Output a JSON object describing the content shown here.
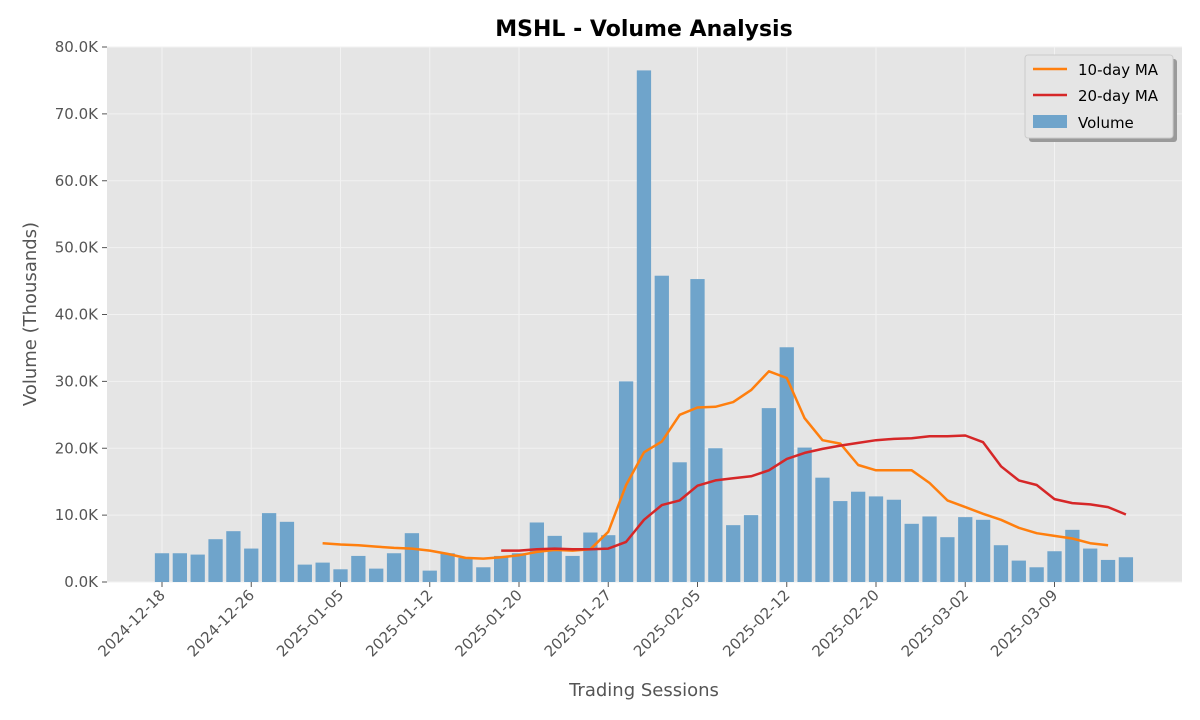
{
  "chart_data": {
    "type": "bar",
    "title": "MSHL - Volume Analysis",
    "xlabel": "Trading Sessions",
    "ylabel": "Volume (Thousands)",
    "ylim": [
      0,
      80000
    ],
    "y_tick_values": [
      0,
      10000,
      20000,
      30000,
      40000,
      50000,
      60000,
      70000,
      80000
    ],
    "y_tick_labels": [
      "0.0K",
      "10.0K",
      "20.0K",
      "30.0K",
      "40.0K",
      "50.0K",
      "60.0K",
      "70.0K",
      "80.0K"
    ],
    "x_tick_labels": [
      "2024-12-18",
      "2024-12-26",
      "2025-01-05",
      "2025-01-12",
      "2025-01-20",
      "2025-01-27",
      "2025-02-05",
      "2025-02-12",
      "2025-02-20",
      "2025-03-02",
      "2025-03-09"
    ],
    "x_tick_positions": [
      0,
      5,
      10,
      15,
      20,
      25,
      30,
      35,
      40,
      45,
      50
    ],
    "grid": true,
    "legend_position": "top-right",
    "colors": {
      "volume": "#6fa4cb",
      "ma10": "#ff7f0e",
      "ma20": "#d62728",
      "plot_bg": "#e5e5e5",
      "grid": "#f2f2f2"
    },
    "series": [
      {
        "name": "Volume",
        "type": "bar",
        "values": [
          4300,
          4300,
          4100,
          6400,
          7600,
          5000,
          10300,
          9000,
          2600,
          2900,
          1900,
          3900,
          2000,
          4300,
          7300,
          1700,
          4300,
          3600,
          2200,
          3900,
          4300,
          8900,
          6900,
          3900,
          7400,
          7000,
          30000,
          76500,
          45800,
          17900,
          45300,
          20000,
          8500,
          10000,
          26000,
          35100,
          20100,
          15600,
          12100,
          13500,
          12800,
          12300,
          8700,
          9800,
          6700,
          9700,
          9300,
          5500,
          3200,
          2200,
          4600,
          7800,
          5000,
          3300,
          3700
        ]
      },
      {
        "name": "10-day MA",
        "type": "line",
        "start_index": 9,
        "values": [
          5800,
          5600,
          5500,
          5300,
          5100,
          5000,
          4700,
          4200,
          3600,
          3500,
          3700,
          4000,
          4500,
          4800,
          4700,
          4900,
          7500,
          14500,
          19400,
          21000,
          25000,
          26100,
          26200,
          26900,
          28700,
          31500,
          30500,
          24500,
          21200,
          20700,
          17500,
          16700,
          16700,
          16700,
          14800,
          12200,
          11200,
          10200,
          9300,
          8100,
          7300,
          6900,
          6500,
          5800,
          5500
        ]
      },
      {
        "name": "20-day MA",
        "type": "line",
        "start_index": 19,
        "values": [
          4700,
          4700,
          4900,
          5000,
          4900,
          4900,
          5000,
          6000,
          9300,
          11500,
          12200,
          14400,
          15200,
          15500,
          15800,
          16700,
          18400,
          19300,
          19900,
          20400,
          20800,
          21200,
          21400,
          21500,
          21800,
          21800,
          21900,
          20900,
          17300,
          15200,
          14500,
          12400,
          11800,
          11600,
          11200,
          10100
        ]
      }
    ]
  }
}
